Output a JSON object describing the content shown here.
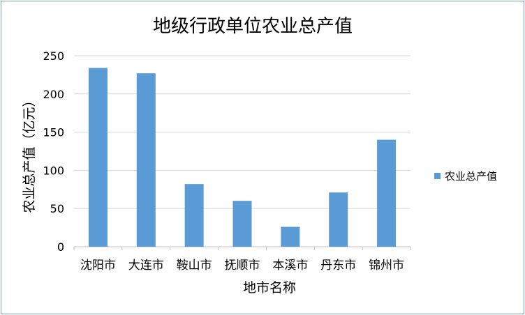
{
  "chart_data": {
    "type": "bar",
    "title": "地级行政单位农业总产值",
    "xlabel": "地市名称",
    "ylabel": "农业总产值（亿元）",
    "categories": [
      "沈阳市",
      "大连市",
      "鞍山市",
      "抚顺市",
      "本溪市",
      "丹东市",
      "锦州市"
    ],
    "series": [
      {
        "name": "农业总产值",
        "values": [
          234,
          227,
          82,
          60,
          26,
          71,
          140
        ]
      }
    ],
    "ylim": [
      0,
      250
    ],
    "yticks": [
      0,
      50,
      100,
      150,
      200,
      250
    ],
    "grid": true,
    "legend_position": "right",
    "colors": {
      "bar": "#5b9bd5",
      "grid": "#d9d9d9",
      "axis": "#bfbfbf",
      "text": "#000000"
    }
  }
}
